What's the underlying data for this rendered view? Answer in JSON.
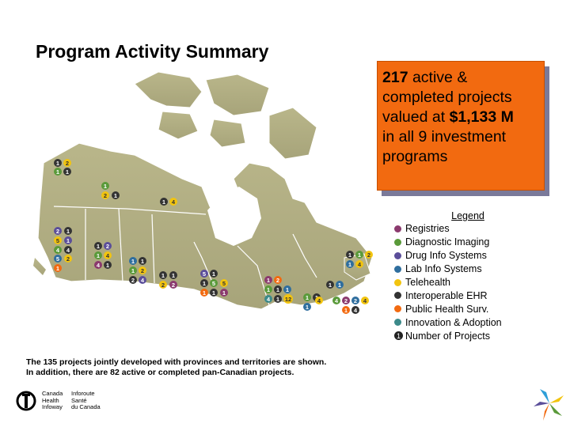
{
  "title": "Program Activity Summary",
  "callout": {
    "count": "217",
    "line1": " active &",
    "line2": "completed projects",
    "line3_pre": "valued at ",
    "value": "$1,133 M",
    "line4": "in all 9 investment",
    "line5": "programs"
  },
  "legend": {
    "title": "Legend",
    "items": [
      {
        "label": "Registries",
        "color": "#8b3a6e"
      },
      {
        "label": "Diagnostic Imaging",
        "color": "#5a9a3a"
      },
      {
        "label": "Drug Info Systems",
        "color": "#5b4e9a"
      },
      {
        "label": "Lab Info Systems",
        "color": "#2f6e9e"
      },
      {
        "label": "Telehealth",
        "color": "#f2c40f"
      },
      {
        "label": "Interoperable EHR",
        "color": "#333333"
      },
      {
        "label": "Public Health Surv.",
        "color": "#f26a10"
      },
      {
        "label": "Innovation & Adoption",
        "color": "#3c8a8a"
      }
    ],
    "number_symbol": "①",
    "number_label": "Number of Projects"
  },
  "footnote": {
    "line1": "The 135 projects jointly developed with provinces and territories are shown.",
    "line2": "In addition, there are 82 active or completed pan-Canadian projects."
  },
  "logo": {
    "en1": "Canada",
    "en2": "Health",
    "en3": "Infoway",
    "fr1": "Inforoute",
    "fr2": "Santé",
    "fr3": "du Canada"
  }
}
